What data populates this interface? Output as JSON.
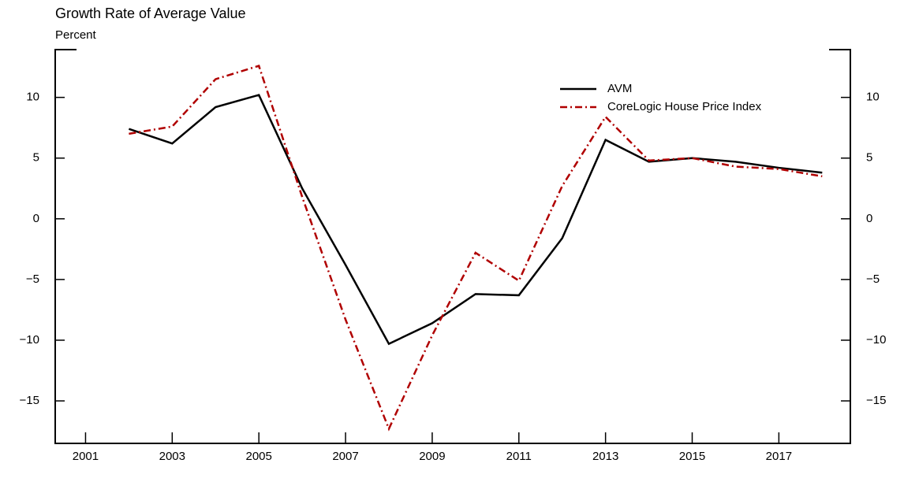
{
  "chart_data": {
    "type": "line",
    "title": "Growth Rate of Average Value",
    "subtitle": "Percent",
    "x": [
      2002,
      2003,
      2004,
      2005,
      2006,
      2007,
      2008,
      2009,
      2010,
      2011,
      2012,
      2013,
      2014,
      2015,
      2016,
      2017,
      2018
    ],
    "series": [
      {
        "name": "AVM",
        "color": "#000000",
        "dash": "solid",
        "values": [
          7.4,
          6.2,
          9.2,
          10.2,
          2.5,
          -3.8,
          -10.3,
          -8.6,
          -6.2,
          -6.3,
          -1.6,
          6.5,
          4.7,
          5.0,
          4.7,
          4.2,
          3.8
        ]
      },
      {
        "name": "CoreLogic House Price Index",
        "color": "#b00000",
        "dash": "dashdot",
        "values": [
          7.0,
          7.6,
          11.5,
          12.6,
          1.8,
          -8.3,
          -17.3,
          -9.6,
          -2.8,
          -5.1,
          2.7,
          8.4,
          4.8,
          5.0,
          4.3,
          4.1,
          3.5
        ]
      }
    ],
    "xlim": [
      2000.3,
      2018.65
    ],
    "xticks": [
      2001,
      2003,
      2005,
      2007,
      2009,
      2011,
      2013,
      2015,
      2017
    ],
    "ylim": [
      -18.5,
      14
    ],
    "yticks": [
      {
        "value": -15,
        "label": "−15"
      },
      {
        "value": -10,
        "label": "−10"
      },
      {
        "value": -5,
        "label": "−5"
      },
      0,
      5,
      10
    ],
    "legend": "upper right"
  }
}
